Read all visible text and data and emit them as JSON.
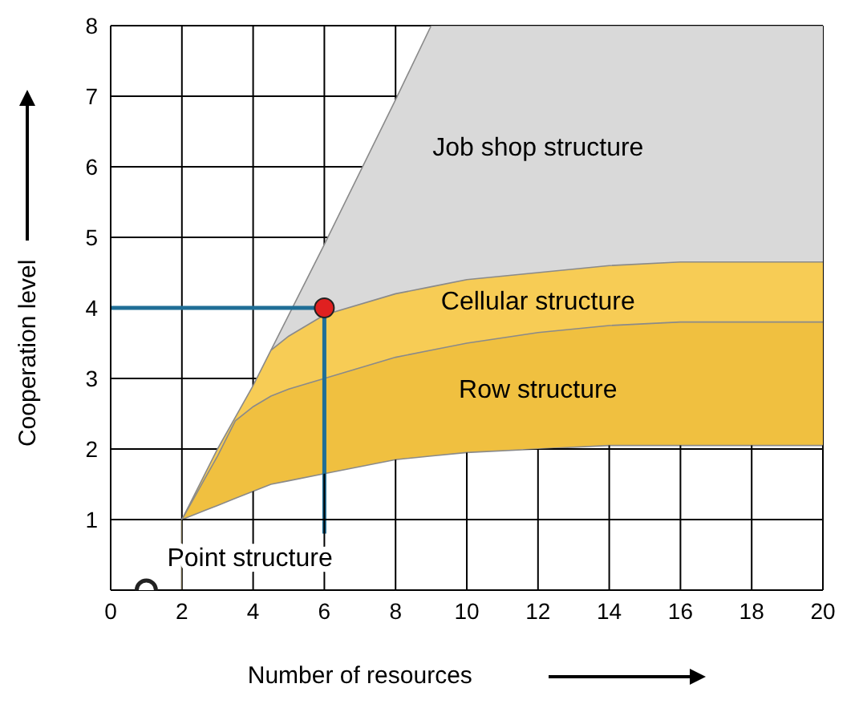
{
  "chart_data": {
    "type": "area",
    "xlabel": "Number of resources",
    "ylabel": "Cooperation level",
    "xlim": [
      0,
      20
    ],
    "ylim": [
      0,
      8
    ],
    "xticks": [
      0,
      2,
      4,
      6,
      8,
      10,
      12,
      14,
      16,
      18,
      20
    ],
    "yticks": [
      {
        "value": 0,
        "label": null
      },
      1,
      2,
      3,
      4,
      5,
      6,
      7,
      8
    ],
    "grid": true,
    "x": [
      2,
      3,
      3.5,
      4,
      4.5,
      5,
      6,
      8,
      9,
      10,
      12,
      14,
      16,
      18,
      20
    ],
    "series": [
      {
        "name": "Job shop structure",
        "color": "#d9d9d9",
        "values": [
          null,
          null,
          null,
          null,
          3.4,
          3.9,
          4.9,
          6.95,
          8,
          8,
          8,
          8,
          8,
          8,
          8
        ]
      },
      {
        "name": "Cellular structure",
        "color": "#f7cc55",
        "values": [
          1,
          2,
          2.45,
          2.9,
          3.4,
          3.6,
          3.9,
          4.2,
          4.3,
          4.4,
          4.5,
          4.6,
          4.65,
          4.65,
          4.65
        ]
      },
      {
        "name": "Row structure",
        "color": "#f0c040",
        "values": [
          1,
          1.9,
          2.4,
          2.6,
          2.75,
          2.85,
          3.0,
          3.3,
          3.4,
          3.5,
          3.65,
          3.75,
          3.8,
          3.8,
          3.8
        ]
      },
      {
        "color": "#ffffff",
        "values": [
          1,
          1.2,
          1.3,
          1.4,
          1.5,
          1.55,
          1.65,
          1.85,
          1.9,
          1.95,
          2.0,
          2.05,
          2.05,
          2.05,
          2.05
        ]
      },
      {
        "type": "line",
        "color": "#1f6e96",
        "x": [
          0,
          6,
          6
        ],
        "values": [
          4,
          4,
          0.8
        ]
      },
      {
        "type": "scatter",
        "color": "#e02020",
        "x": [
          6
        ],
        "values": [
          4
        ]
      },
      {
        "name": "Point structure",
        "type": "scatter",
        "color": "#ffffff",
        "x": [
          1
        ],
        "values": [
          0
        ]
      }
    ]
  }
}
